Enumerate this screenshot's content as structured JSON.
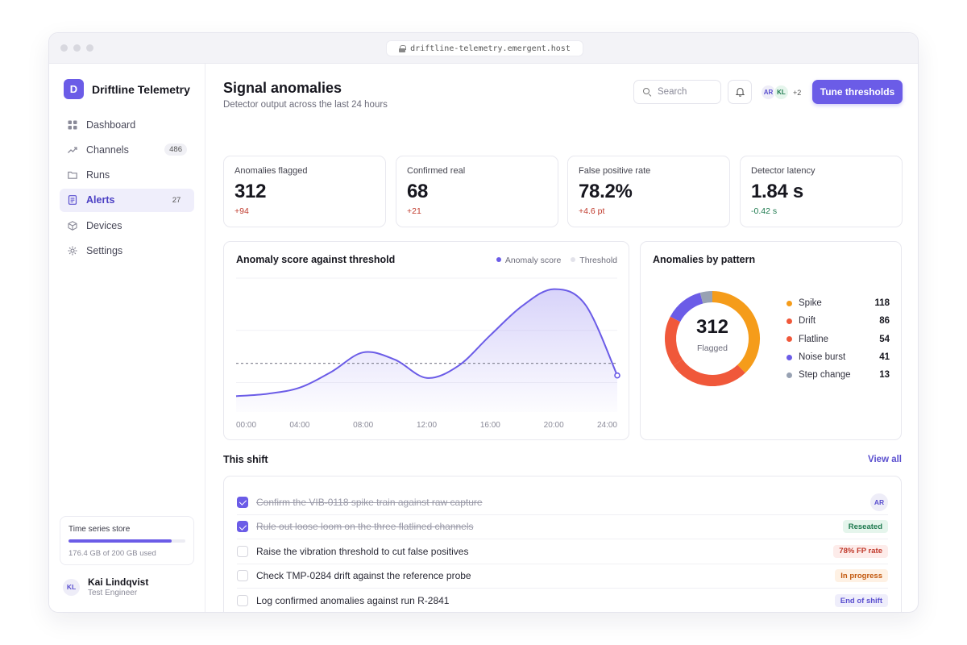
{
  "browser": {
    "url": "driftline-telemetry.emergent.host"
  },
  "brand": {
    "mark": "D",
    "name": "Driftline Telemetry"
  },
  "nav": [
    {
      "label": "Dashboard",
      "icon": "grid-icon",
      "badge": ""
    },
    {
      "label": "Channels",
      "icon": "trend-icon",
      "badge": "486"
    },
    {
      "label": "Runs",
      "icon": "folder-icon",
      "badge": ""
    },
    {
      "label": "Alerts",
      "icon": "document-icon",
      "badge": "27",
      "active": true
    },
    {
      "label": "Devices",
      "icon": "cube-icon",
      "badge": ""
    },
    {
      "label": "Settings",
      "icon": "gear-icon",
      "badge": ""
    }
  ],
  "storage": {
    "title": "Time series store",
    "used_fraction": 0.882,
    "usage_text": "176.4 GB of 200 GB used"
  },
  "user": {
    "initials": "KL",
    "name": "Kai Lindqvist",
    "role": "Test Engineer"
  },
  "header": {
    "title": "Signal anomalies",
    "subtitle": "Detector output across the last 24 hours",
    "search_placeholder": "Search",
    "avatars": [
      "AR",
      "KL"
    ],
    "avatars_more": "+2",
    "primary_button": "Tune thresholds"
  },
  "kpis": [
    {
      "label": "Anomalies flagged",
      "value": "312",
      "delta": "+94",
      "delta_color": "#c0392b"
    },
    {
      "label": "Confirmed real",
      "value": "68",
      "delta": "+21",
      "delta_color": "#c0392b"
    },
    {
      "label": "False positive rate",
      "value": "78.2%",
      "delta": "+4.6 pt",
      "delta_color": "#c0392b"
    },
    {
      "label": "Detector latency",
      "value": "1.84 s",
      "delta": "-0.42 s",
      "delta_color": "#1e7a4f"
    }
  ],
  "score_card": {
    "title": "Anomaly score against threshold",
    "legend": [
      "Anomaly score",
      "Threshold"
    ]
  },
  "chart_data": [
    {
      "type": "area",
      "title": "Anomaly score against threshold",
      "x": [
        "00:00",
        "02:00",
        "04:00",
        "06:00",
        "08:00",
        "10:00",
        "12:00",
        "14:00",
        "16:00",
        "18:00",
        "20:00",
        "22:00",
        "24:00"
      ],
      "x_tick_labels": [
        "00:00",
        "04:00",
        "08:00",
        "12:00",
        "16:00",
        "20:00",
        "24:00"
      ],
      "series": [
        {
          "name": "Anomaly score",
          "color": "#6b5ce7",
          "values": [
            13,
            15,
            20,
            33,
            49,
            43,
            28,
            38,
            63,
            87,
            101,
            88,
            30
          ]
        },
        {
          "name": "Threshold",
          "color": "#8a8a98",
          "values": [
            40,
            40,
            40,
            40,
            40,
            40,
            40,
            40,
            40,
            40,
            40,
            40,
            40
          ]
        }
      ],
      "ylim": [
        0,
        110
      ],
      "grid": true
    },
    {
      "type": "pie",
      "title": "Anomalies by pattern",
      "center_value": "312",
      "center_label": "Flagged",
      "slices": [
        {
          "label": "Spike",
          "value": 118,
          "color": "#f59c1a"
        },
        {
          "label": "Drift",
          "value": 86,
          "color": "#f0583a"
        },
        {
          "label": "Flatline",
          "value": 54,
          "color": "#f0583a"
        },
        {
          "label": "Noise burst",
          "value": 41,
          "color": "#6b5ce7"
        },
        {
          "label": "Step change",
          "value": 13,
          "color": "#98a2b3"
        }
      ]
    }
  ],
  "shift": {
    "title": "This shift",
    "view_all": "View all",
    "tasks": [
      {
        "text": "Confirm the VIB-0118 spike train against raw capture",
        "done": true,
        "tag": "AR",
        "tag_type": "avatar"
      },
      {
        "text": "Rule out loose loom on the three flatlined channels",
        "done": true,
        "tag": "Reseated",
        "tag_bg": "#e5f5ec",
        "tag_fg": "#1e7a4f"
      },
      {
        "text": "Raise the vibration threshold to cut false positives",
        "done": false,
        "tag": "78% FP rate",
        "tag_bg": "#fdecea",
        "tag_fg": "#c0392b"
      },
      {
        "text": "Check TMP-0284 drift against the reference probe",
        "done": false,
        "tag": "In progress",
        "tag_bg": "#fef1e4",
        "tag_fg": "#c2570c"
      },
      {
        "text": "Log confirmed anomalies against run R-2841",
        "done": false,
        "tag": "End of shift",
        "tag_bg": "#efeefb",
        "tag_fg": "#5a4fcf"
      }
    ]
  }
}
